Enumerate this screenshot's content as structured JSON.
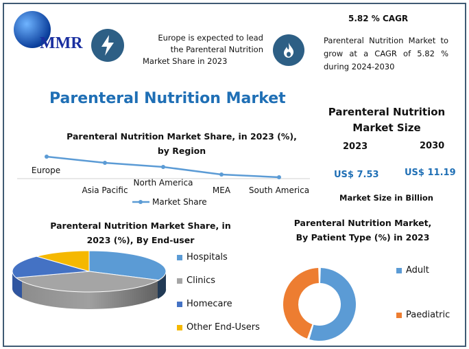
{
  "logo": {
    "text": "MMR"
  },
  "highlights": [
    {
      "icon": "lightning-icon",
      "text": "Europe is expected to lead the Parenteral Nutrition Market Share in 2023"
    },
    {
      "icon": "flame-icon",
      "title": "5.82 % CAGR",
      "text": "Parenteral Nutrition Market to grow at a CAGR of 5.82 % during 2024-2030"
    }
  ],
  "main_title": "Parenteral Nutrition Market",
  "market_size": {
    "title": "Parenteral Nutrition Market Size",
    "years": [
      "2023",
      "2030"
    ],
    "values": [
      "US$ 7.53",
      "US$ 11.19"
    ],
    "unit": "Market Size in Billion"
  },
  "colors": {
    "accent": "#1f6fb5",
    "line": "#5b9bd5",
    "hospitals": "#5b9bd5",
    "clinics": "#a5a5a5",
    "homecare": "#4472c4",
    "other": "#f5b800",
    "adult": "#5b9bd5",
    "paediatric": "#ed7d31"
  },
  "chart_data": [
    {
      "type": "line",
      "title": "Parenteral Nutrition Market Share, in 2023 (%), by Region",
      "categories": [
        "Europe",
        "Asia Pacific",
        "North America",
        "MEA",
        "South America"
      ],
      "series": [
        {
          "name": "Market Share",
          "values": [
            32,
            23,
            17,
            6,
            2
          ]
        }
      ],
      "ylim": [
        0,
        40
      ],
      "legend": "bottom"
    },
    {
      "type": "pie",
      "title": "Parenteral Nutrition Market Share, in 2023 (%), By End-user",
      "categories": [
        "Hospitals",
        "Clinics",
        "Homecare",
        "Other End-Users"
      ],
      "values": [
        32,
        38,
        18,
        12
      ],
      "legend": "right"
    },
    {
      "type": "pie",
      "title": "Parenteral Nutrition Market, By Patient Type (%) in 2023",
      "categories": [
        "Adult",
        "Paediatric"
      ],
      "values": [
        55,
        45
      ],
      "legend": "right"
    }
  ]
}
